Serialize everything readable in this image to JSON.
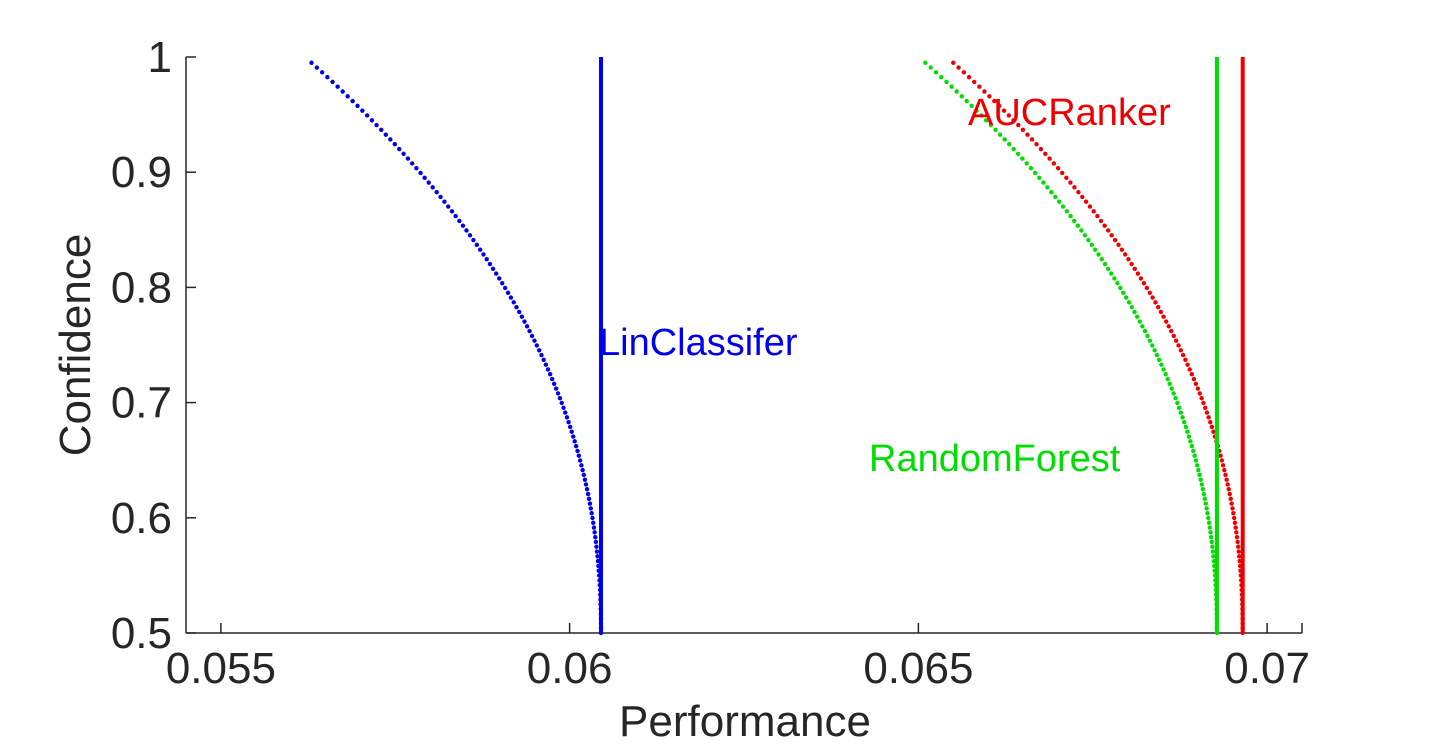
{
  "chart_data": {
    "type": "scatter",
    "title": "",
    "xlabel": "Performance",
    "ylabel": "Confidence",
    "xlim": [
      0.0545,
      0.0705
    ],
    "ylim": [
      0.5,
      1.0
    ],
    "xticks": [
      0.055,
      0.06,
      0.065,
      0.07
    ],
    "xtick_labels": [
      "0.055",
      "0.06",
      "0.065",
      "0.07"
    ],
    "yticks": [
      0.5,
      0.6,
      0.7,
      0.8,
      0.9,
      1.0
    ],
    "ytick_labels": [
      "0.5",
      "0.6",
      "0.7",
      "0.8",
      "0.9",
      "1"
    ],
    "grid": false,
    "series": [
      {
        "name": "LinClassifer",
        "color": "#0000ee",
        "vertical_line_x": 0.06045,
        "curve": {
          "x_top": 0.0563,
          "y_top": 0.995
        },
        "points": 120
      },
      {
        "name": "AUCRanker",
        "color": "#ee0000",
        "vertical_line_x": 0.06965,
        "curve": {
          "x_top": 0.0655,
          "y_top": 0.995
        },
        "points": 120
      },
      {
        "name": "RandomForest",
        "color": "#00dd00",
        "vertical_line_x": 0.06928,
        "curve": {
          "x_top": 0.0651,
          "y_top": 0.995
        },
        "points": 120
      }
    ]
  }
}
